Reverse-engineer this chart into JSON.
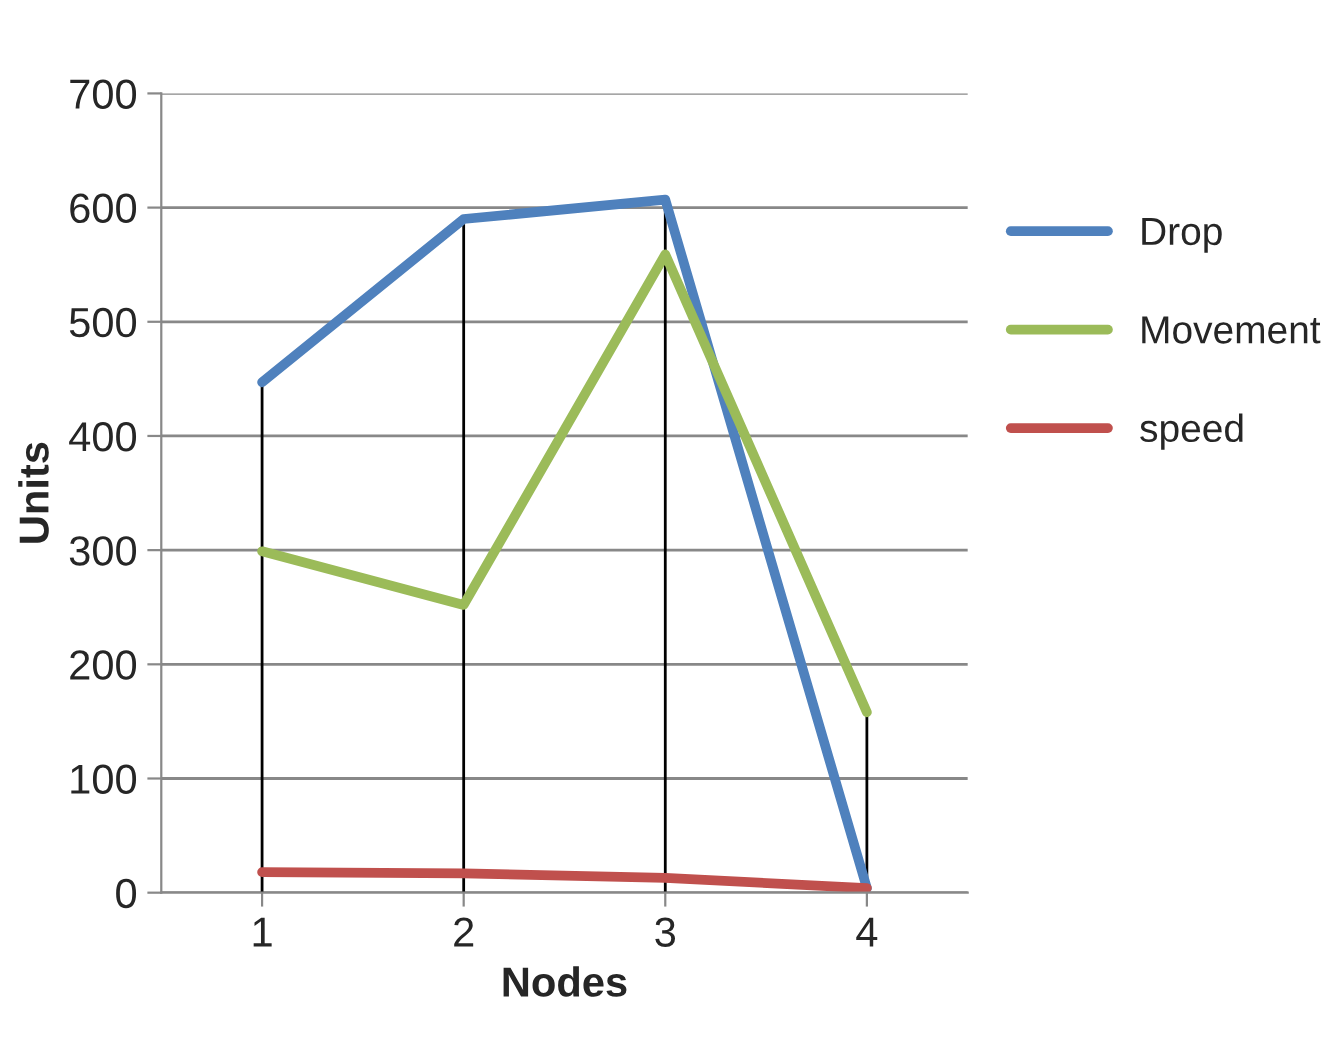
{
  "chart_data": {
    "type": "line",
    "xlabel": "Nodes",
    "ylabel": "Units",
    "categories": [
      "1",
      "2",
      "3",
      "4"
    ],
    "series": [
      {
        "name": "Drop",
        "color": "#4f81bd",
        "values": [
          447,
          590,
          607,
          4
        ]
      },
      {
        "name": "Movement",
        "color": "#9bbb59",
        "values": [
          299,
          252,
          559,
          158
        ]
      },
      {
        "name": "speed",
        "color": "#c0504d",
        "values": [
          18,
          17,
          13,
          4
        ]
      }
    ],
    "ylim": [
      0,
      700
    ],
    "yticks": [
      0,
      100,
      200,
      300,
      400,
      500,
      600,
      700
    ],
    "grid": "y",
    "legend": "right",
    "marker": "none",
    "line_style": "solid",
    "ref_lines": [
      {
        "axis": "x",
        "value": "1",
        "color": "#000000"
      },
      {
        "axis": "x",
        "value": "2",
        "color": "#000000"
      },
      {
        "axis": "x",
        "value": "3",
        "color": "#000000"
      },
      {
        "axis": "x",
        "value": "4",
        "color": "#000000"
      }
    ]
  }
}
